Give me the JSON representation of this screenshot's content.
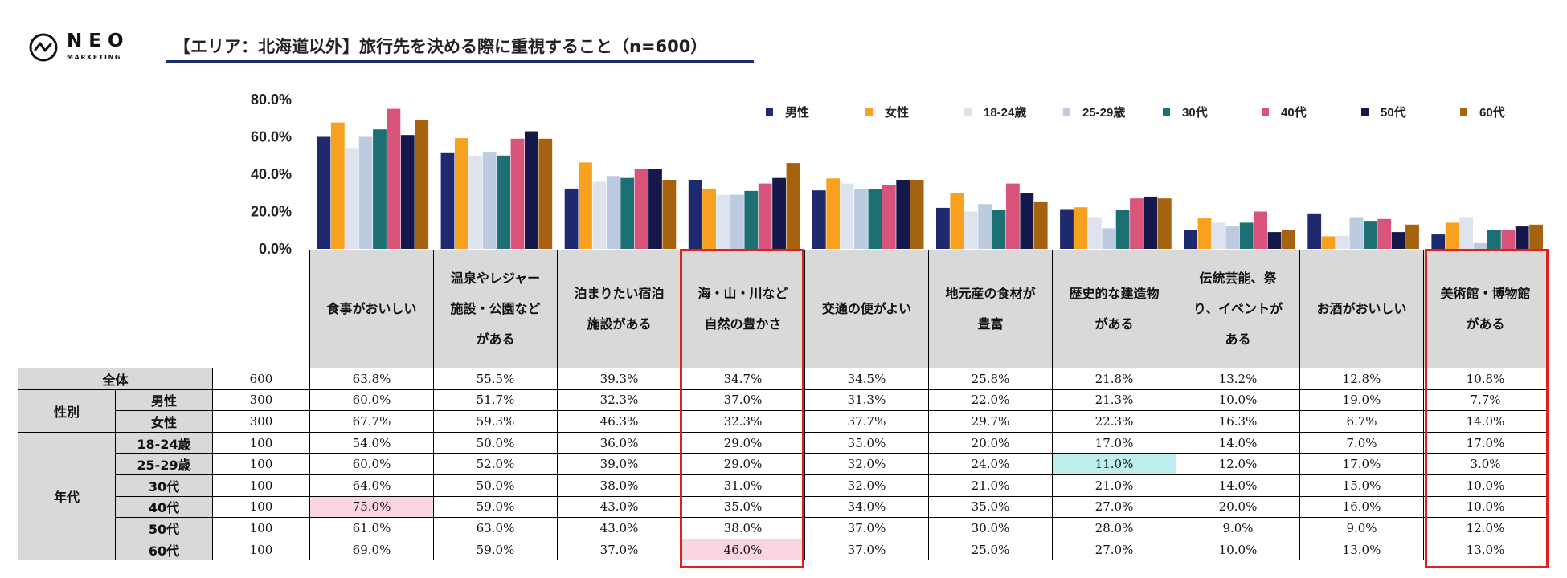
{
  "logo": {
    "name": "NEO",
    "sub": "MARKETING"
  },
  "title": "【エリア：北海道以外】旅行先を決める際に重視すること（n=600）",
  "table": {
    "rows": [
      {
        "group": "全体",
        "label": "",
        "n": "600",
        "values": [
          "63.8%",
          "55.5%",
          "39.3%",
          "34.7%",
          "34.5%",
          "25.8%",
          "21.8%",
          "13.2%",
          "12.8%",
          "10.8%"
        ]
      },
      {
        "group": "性別",
        "label": "男性",
        "n": "300",
        "values": [
          "60.0%",
          "51.7%",
          "32.3%",
          "37.0%",
          "31.3%",
          "22.0%",
          "21.3%",
          "10.0%",
          "19.0%",
          "7.7%"
        ]
      },
      {
        "group": "",
        "label": "女性",
        "n": "300",
        "values": [
          "67.7%",
          "59.3%",
          "46.3%",
          "32.3%",
          "37.7%",
          "29.7%",
          "22.3%",
          "16.3%",
          "6.7%",
          "14.0%"
        ]
      },
      {
        "group": "年代",
        "label": "18-24歳",
        "n": "100",
        "values": [
          "54.0%",
          "50.0%",
          "36.0%",
          "29.0%",
          "35.0%",
          "20.0%",
          "17.0%",
          "14.0%",
          "7.0%",
          "17.0%"
        ]
      },
      {
        "group": "",
        "label": "25-29歳",
        "n": "100",
        "values": [
          "60.0%",
          "52.0%",
          "39.0%",
          "29.0%",
          "32.0%",
          "24.0%",
          "11.0%",
          "12.0%",
          "17.0%",
          "3.0%"
        ]
      },
      {
        "group": "",
        "label": "30代",
        "n": "100",
        "values": [
          "64.0%",
          "50.0%",
          "38.0%",
          "31.0%",
          "32.0%",
          "21.0%",
          "21.0%",
          "14.0%",
          "15.0%",
          "10.0%"
        ]
      },
      {
        "group": "",
        "label": "40代",
        "n": "100",
        "values": [
          "75.0%",
          "59.0%",
          "43.0%",
          "35.0%",
          "34.0%",
          "35.0%",
          "27.0%",
          "20.0%",
          "16.0%",
          "10.0%"
        ]
      },
      {
        "group": "",
        "label": "50代",
        "n": "100",
        "values": [
          "61.0%",
          "63.0%",
          "43.0%",
          "38.0%",
          "37.0%",
          "30.0%",
          "28.0%",
          "9.0%",
          "9.0%",
          "12.0%"
        ]
      },
      {
        "group": "",
        "label": "60代",
        "n": "100",
        "values": [
          "69.0%",
          "59.0%",
          "37.0%",
          "46.0%",
          "37.0%",
          "25.0%",
          "27.0%",
          "10.0%",
          "13.0%",
          "13.0%"
        ]
      }
    ]
  },
  "chart_data": {
    "type": "bar",
    "title": "【エリア：北海道以外】旅行先を決める際に重視すること（n=600）",
    "categories": [
      [
        "食事がおいしい"
      ],
      [
        "温泉やレジャー",
        "施設・公園など",
        "がある"
      ],
      [
        "泊まりたい宿泊",
        "施設がある"
      ],
      [
        "海・山・川など",
        "自然の豊かさ"
      ],
      [
        "交通の便がよい"
      ],
      [
        "地元産の食材が",
        "豊富"
      ],
      [
        "歴史的な建造物",
        "がある"
      ],
      [
        "伝統芸能、祭",
        "り、イベントが",
        "ある"
      ],
      [
        "お酒がおいしい"
      ],
      [
        "美術館・博物館",
        "がある"
      ]
    ],
    "y_ticks": [
      "80.0%",
      "60.0%",
      "40.0%",
      "20.0%",
      "0.0%"
    ],
    "ylim": [
      0,
      80
    ],
    "legend_position": "top-right",
    "series": [
      {
        "name": "男性",
        "color": "#1f2a6e",
        "values": [
          60.0,
          51.7,
          32.3,
          37.0,
          31.3,
          22.0,
          21.3,
          10.0,
          19.0,
          7.7
        ]
      },
      {
        "name": "女性",
        "color": "#f7a11f",
        "values": [
          67.7,
          59.3,
          46.3,
          32.3,
          37.7,
          29.7,
          22.3,
          16.3,
          6.7,
          14.0
        ]
      },
      {
        "name": "18-24歳",
        "color": "#dfe3ee",
        "values": [
          54.0,
          50.0,
          36.0,
          29.0,
          35.0,
          20.0,
          17.0,
          14.0,
          7.0,
          17.0
        ]
      },
      {
        "name": "25-29歳",
        "color": "#bccbe0",
        "values": [
          60.0,
          52.0,
          39.0,
          29.0,
          32.0,
          24.0,
          11.0,
          12.0,
          17.0,
          3.0
        ]
      },
      {
        "name": "30代",
        "color": "#1c6f73",
        "values": [
          64.0,
          50.0,
          38.0,
          31.0,
          32.0,
          21.0,
          21.0,
          14.0,
          15.0,
          10.0
        ]
      },
      {
        "name": "40代",
        "color": "#d9547a",
        "values": [
          75.0,
          59.0,
          43.0,
          35.0,
          34.0,
          35.0,
          27.0,
          20.0,
          16.0,
          10.0
        ]
      },
      {
        "name": "50代",
        "color": "#14184a",
        "values": [
          61.0,
          63.0,
          43.0,
          38.0,
          37.0,
          30.0,
          28.0,
          9.0,
          9.0,
          12.0
        ]
      },
      {
        "name": "60代",
        "color": "#a5620f",
        "values": [
          69.0,
          59.0,
          37.0,
          46.0,
          37.0,
          25.0,
          27.0,
          10.0,
          13.0,
          13.0
        ]
      }
    ]
  },
  "highlights": {
    "pink": "#f9d6df",
    "cyan": "#bfeeee",
    "box": "#e02020"
  }
}
